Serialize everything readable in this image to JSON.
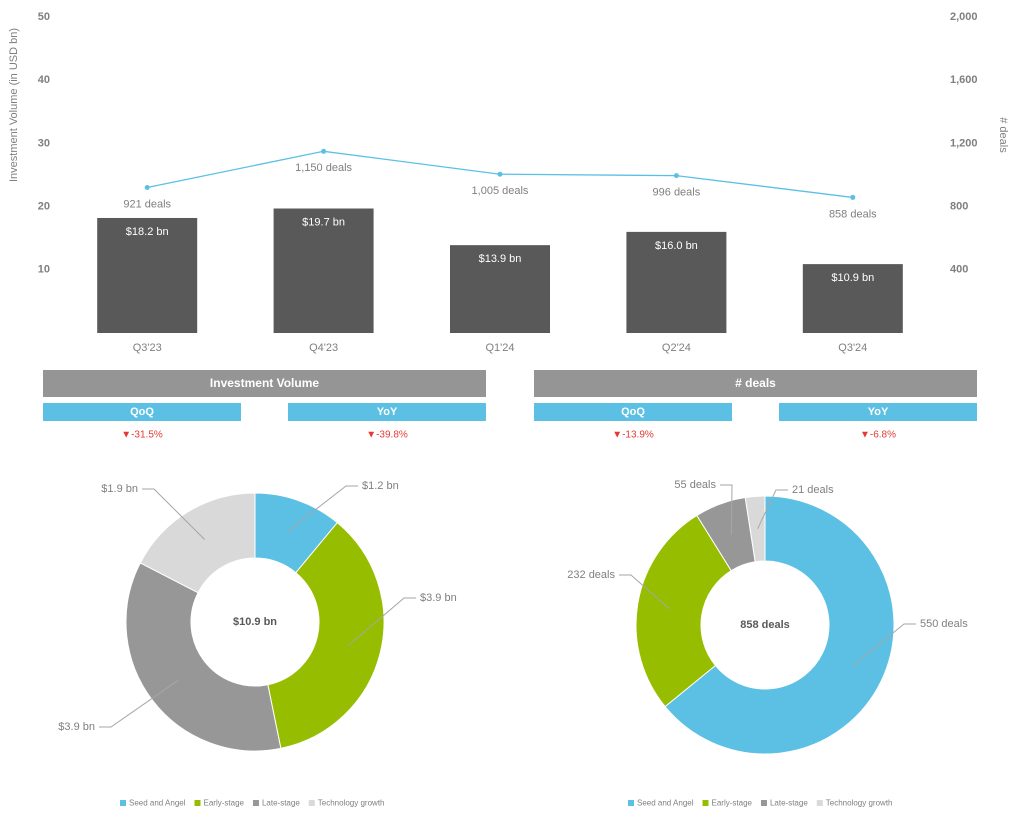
{
  "chart_data": [
    {
      "type": "combo",
      "y_label": "Investment Volume (in USD bn)",
      "y2_label": "# deals",
      "categories": [
        "Q3'23",
        "Q4'23",
        "Q1'24",
        "Q2'24",
        "Q3'24"
      ],
      "series": [
        {
          "type": "bar",
          "color": "#595959",
          "values": [
            18.2,
            19.7,
            13.9,
            16.0,
            10.9
          ],
          "value_labels": [
            "$18.2 bn",
            "$19.7 bn",
            "$13.9 bn",
            "$16.0 bn",
            "$10.9 bn"
          ]
        },
        {
          "type": "line",
          "axis": "y2",
          "color": "#5bc0e4",
          "values": [
            921,
            1150,
            1005,
            996,
            858
          ],
          "value_labels": [
            "921 deals",
            "1,150 deals",
            "1,005 deals",
            "996 deals",
            "858 deals"
          ]
        }
      ],
      "ylim": [
        0,
        50
      ],
      "yticks": [
        10,
        20,
        30,
        40,
        50
      ],
      "y2lim": [
        0,
        2000
      ],
      "y2ticks": [
        400,
        800,
        {
          "value": 1200,
          "label": "1,200"
        },
        {
          "value": 1600,
          "label": "1,600"
        },
        {
          "value": 2000,
          "label": "2,000"
        }
      ],
      "grid": false
    },
    {
      "type": "donut",
      "center_label": "$10.9 bn",
      "categories": [
        "Seed and Angel",
        "Early-stage",
        "Late-stage",
        "Technology growth"
      ],
      "values": [
        1.2,
        3.9,
        3.9,
        1.9
      ],
      "value_labels": [
        "$1.2 bn",
        "$3.9 bn",
        "$3.9 bn",
        "$1.9 bn"
      ],
      "colors": [
        "#5bc0e4",
        "#97bd00",
        "#979797",
        "#d9d9d9"
      ]
    },
    {
      "type": "donut",
      "center_label": "858 deals",
      "categories": [
        "Seed and Angel",
        "Early-stage",
        "Late-stage",
        "Technology growth"
      ],
      "values": [
        550,
        232,
        55,
        21
      ],
      "value_labels": [
        "550 deals",
        "232 deals",
        "55 deals",
        "21 deals"
      ],
      "colors": [
        "#5bc0e4",
        "#97bd00",
        "#979797",
        "#d9d9d9"
      ]
    }
  ],
  "kpi_panel": {
    "groups": [
      {
        "title": "Investment Volume",
        "items": [
          {
            "label": "QoQ",
            "value": "▼-31.5%"
          },
          {
            "label": "YoY",
            "value": "▼-39.8%"
          }
        ]
      },
      {
        "title": "# deals",
        "items": [
          {
            "label": "QoQ",
            "value": "▼-13.9%"
          },
          {
            "label": "YoY",
            "value": "▼-6.8%"
          }
        ]
      }
    ]
  }
}
